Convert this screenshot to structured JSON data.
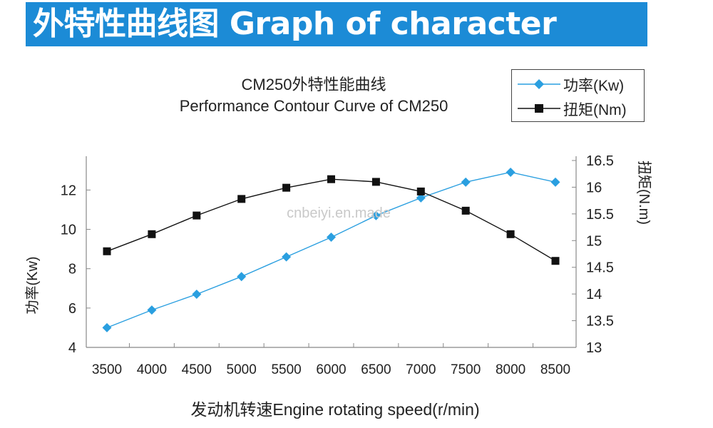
{
  "banner": {
    "title": "外特性曲线图 Graph of character"
  },
  "chart_data": {
    "type": "line",
    "title": "CM250外特性能曲线",
    "subtitle": "Performance Contour Curve of CM250",
    "xlabel": "发动机转速Engine rotating speed(r/min)",
    "ylabel_left": "功率(Kw)",
    "ylabel_right": "扭矩(N.m)",
    "categories": [
      "3500",
      "4000",
      "4500",
      "5000",
      "5500",
      "6000",
      "6500",
      "7000",
      "7500",
      "8000",
      "8500"
    ],
    "x": [
      3500,
      4000,
      4500,
      5000,
      5500,
      6000,
      6500,
      7000,
      7500,
      8000,
      8500
    ],
    "ylim_left": [
      4,
      13.5
    ],
    "yticks_left": [
      4,
      6,
      8,
      10,
      12
    ],
    "ylim_right": [
      13,
      16.5
    ],
    "yticks_right": [
      13,
      13.5,
      14,
      14.5,
      15,
      15.5,
      16,
      16.5
    ],
    "legend_position": "top-right",
    "grid": false,
    "series": [
      {
        "name": "功率(Kw)",
        "axis": "left",
        "color": "#2a9fe0",
        "marker": "diamond",
        "values": [
          5.0,
          5.9,
          6.7,
          7.6,
          8.6,
          9.6,
          10.7,
          11.6,
          12.4,
          12.9,
          12.4
        ]
      },
      {
        "name": "扭矩(Nm)",
        "axis": "right",
        "color": "#111111",
        "marker": "square",
        "values": [
          14.8,
          15.12,
          15.47,
          15.78,
          15.99,
          16.15,
          16.1,
          15.92,
          15.56,
          15.12,
          14.62
        ]
      }
    ],
    "watermark": "cnbeiyi.en.made"
  }
}
